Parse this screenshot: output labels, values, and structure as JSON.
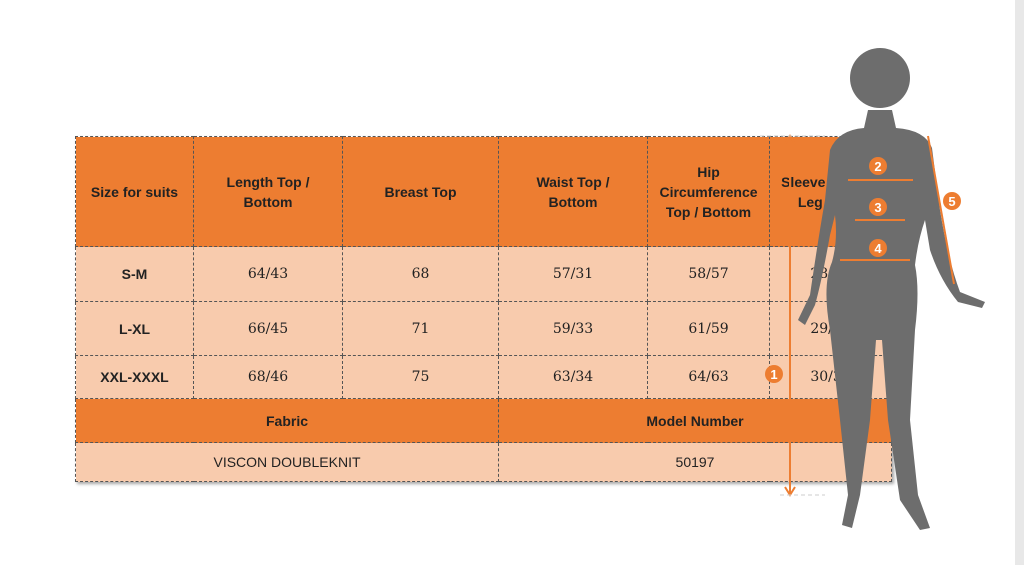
{
  "table": {
    "headers": [
      "Size for suits",
      "Length Top / Bottom",
      "Breast Top",
      "Waist Top / Bottom",
      "Hip Circumference Top / Bottom",
      "Sleeve Length/ Leg width"
    ],
    "rows": [
      [
        "S-M",
        "64/43",
        "68",
        "57/31",
        "58/57",
        "28/31"
      ],
      [
        "L-XL",
        "66/45",
        "71",
        "59/33",
        "61/59",
        "29/33"
      ],
      [
        "XXL-XXXL",
        "68/46",
        "75",
        "63/34",
        "64/63",
        "30/35"
      ]
    ],
    "footer_labels": [
      "Fabric",
      "Model Number"
    ],
    "footer_values": [
      "VISCON DOUBLEKNIT",
      "50197"
    ]
  },
  "figure": {
    "markers": [
      "1",
      "2",
      "3",
      "4",
      "5"
    ],
    "accent": "#ed7d31",
    "silhouette": "#6d6d6d"
  }
}
